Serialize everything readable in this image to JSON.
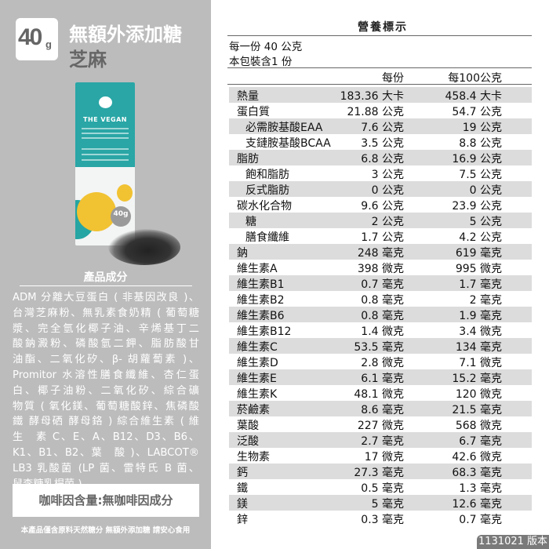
{
  "product": {
    "weight_number": "40",
    "weight_unit": "g",
    "title_line1": "無額外添加糖",
    "title_line2": "芝麻",
    "package": {
      "brand": "THE VEGAN",
      "weight_badge": "40g"
    },
    "ingredients_heading": "產品成分",
    "ingredients_lines": [
      "ADM 分離大豆蛋白 ( 非基因改良 )、",
      "台灣芝麻粉、無乳素食奶精 ( 葡萄糖",
      "漿、完全氫化椰子油、辛烯基丁二",
      "酸鈉澱粉、磷酸氫二鉀、脂肪酸甘",
      "油酯、二氧化矽、β- 胡蘿蔔素 )、",
      "Promitor 水溶性膳食纖維、杏仁蛋",
      "白、椰子油粉、二氧化矽、綜合礦",
      "物質 ( 氧化鎂、葡萄糖酸鋅、焦磷酸",
      "鐵 酵母硒 酵母鉻 ) 綜合維生素 ( 維",
      "生　素 C、E、A、B12、D3、B6、",
      "K1、B1、B2、葉　酸 )、LABCOT®",
      "LB3 乳酸菌 (LP 菌、雷特氏 B 菌、",
      "鼠李糖乳桿菌 )"
    ],
    "caffeine_note": "咖啡因含量:無咖啡因成分",
    "footer_note": "本產品僅含原料天然糖分 無額外添加糖 請安心食用"
  },
  "nutrition": {
    "title": "營養標示",
    "serving_size": "每一份 40 公克",
    "servings_per_pack": "本包裝含1 份",
    "col_per_serving": "每份",
    "col_per_100g": "每100公克",
    "rows": [
      {
        "name": "熱量",
        "per_serving": "183.36 大卡",
        "per_100g": "458.4 大卡",
        "sub": false
      },
      {
        "name": "蛋白質",
        "per_serving": "21.88 公克",
        "per_100g": "54.7 公克",
        "sub": false
      },
      {
        "name": "必需胺基酸EAA",
        "per_serving": "7.6 公克",
        "per_100g": "19 公克",
        "sub": true
      },
      {
        "name": "支鏈胺基酸BCAA",
        "per_serving": "3.5 公克",
        "per_100g": "8.8 公克",
        "sub": true
      },
      {
        "name": "脂肪",
        "per_serving": "6.8 公克",
        "per_100g": "16.9 公克",
        "sub": false
      },
      {
        "name": "飽和脂肪",
        "per_serving": "3 公克",
        "per_100g": "7.5 公克",
        "sub": true
      },
      {
        "name": "反式脂肪",
        "per_serving": "0 公克",
        "per_100g": "0 公克",
        "sub": true
      },
      {
        "name": "碳水化合物",
        "per_serving": "9.6 公克",
        "per_100g": "23.9 公克",
        "sub": false
      },
      {
        "name": "糖",
        "per_serving": "2 公克",
        "per_100g": "5 公克",
        "sub": true
      },
      {
        "name": "膳食纖維",
        "per_serving": "1.7 公克",
        "per_100g": "4.2 公克",
        "sub": true
      },
      {
        "name": "鈉",
        "per_serving": "248 毫克",
        "per_100g": "619 毫克",
        "sub": false
      },
      {
        "name": "維生素A",
        "per_serving": "398 微克",
        "per_100g": "995 微克",
        "sub": false
      },
      {
        "name": "維生素B1",
        "per_serving": "0.7 毫克",
        "per_100g": "1.7 毫克",
        "sub": false
      },
      {
        "name": "維生素B2",
        "per_serving": "0.8 毫克",
        "per_100g": "2 毫克",
        "sub": false
      },
      {
        "name": "維生素B6",
        "per_serving": "0.8 毫克",
        "per_100g": "1.9 毫克",
        "sub": false
      },
      {
        "name": "維生素B12",
        "per_serving": "1.4 微克",
        "per_100g": "3.4 微克",
        "sub": false
      },
      {
        "name": "維生素C",
        "per_serving": "53.5 毫克",
        "per_100g": "134 毫克",
        "sub": false
      },
      {
        "name": "維生素D",
        "per_serving": "2.8 微克",
        "per_100g": "7.1 微克",
        "sub": false
      },
      {
        "name": "維生素E",
        "per_serving": "6.1 毫克",
        "per_100g": "15.2 毫克",
        "sub": false
      },
      {
        "name": "維生素K",
        "per_serving": "48.1 微克",
        "per_100g": "120 微克",
        "sub": false
      },
      {
        "name": "菸鹼素",
        "per_serving": "8.6 毫克",
        "per_100g": "21.5 毫克",
        "sub": false
      },
      {
        "name": "葉酸",
        "per_serving": "227 微克",
        "per_100g": "568 微克",
        "sub": false
      },
      {
        "name": "泛酸",
        "per_serving": "2.7 毫克",
        "per_100g": "6.7 毫克",
        "sub": false
      },
      {
        "name": "生物素",
        "per_serving": "17 微克",
        "per_100g": "42.6 微克",
        "sub": false
      },
      {
        "name": "鈣",
        "per_serving": "27.3 毫克",
        "per_100g": "68.3 毫克",
        "sub": false
      },
      {
        "name": "鐵",
        "per_serving": "0.5 毫克",
        "per_100g": "1.3 毫克",
        "sub": false
      },
      {
        "name": "鎂",
        "per_serving": "5 毫克",
        "per_100g": "12.6 毫克",
        "sub": false
      },
      {
        "name": "鋅",
        "per_serving": "0.3 毫克",
        "per_100g": "0.7 毫克",
        "sub": false
      }
    ],
    "version": "1131021 版本"
  },
  "colors": {
    "left_panel": "#bcbcbc",
    "package_teal": "#2aa6a6",
    "package_yellow": "#f1c232",
    "row_shade": "#dcdcdc"
  }
}
